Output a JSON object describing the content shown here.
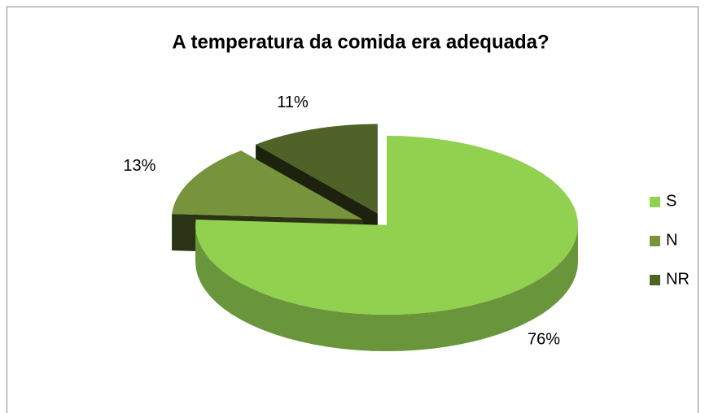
{
  "chart_data": {
    "type": "pie",
    "title": "A temperatura da comida era adequada?",
    "categories": [
      "S",
      "N",
      "NR"
    ],
    "values": [
      76,
      13,
      11
    ],
    "value_labels": [
      "76%",
      "13%",
      "11%"
    ],
    "colors": [
      "#92d050",
      "#77933c",
      "#4f6228"
    ],
    "legend": "right"
  }
}
